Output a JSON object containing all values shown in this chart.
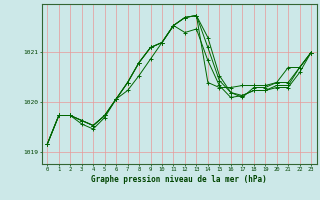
{
  "xlabel": "Graphe pression niveau de la mer (hPa)",
  "x_ticks": [
    0,
    1,
    2,
    3,
    4,
    5,
    6,
    7,
    8,
    9,
    10,
    11,
    12,
    13,
    14,
    15,
    16,
    17,
    18,
    19,
    20,
    21,
    22,
    23
  ],
  "ylim": [
    1018.75,
    1021.95
  ],
  "yticks": [
    1019,
    1020,
    1021
  ],
  "background_color": "#cce8e8",
  "grid_color": "#e89898",
  "line_color": "#006600",
  "series": [
    [
      1019.15,
      1019.72,
      1019.72,
      1019.62,
      1019.52,
      1019.72,
      1020.05,
      1020.38,
      1020.78,
      1021.08,
      1021.18,
      1021.52,
      1021.68,
      1021.72,
      1021.28,
      1020.52,
      1020.18,
      1020.12,
      1020.22,
      1020.22,
      1020.32,
      1020.32,
      1020.68,
      1020.98
    ],
    [
      1019.15,
      1019.72,
      1019.72,
      1019.62,
      1019.52,
      1019.72,
      1020.05,
      1020.22,
      1020.52,
      1020.85,
      1021.18,
      1021.52,
      1021.38,
      1021.45,
      1020.82,
      1020.32,
      1020.08,
      1020.12,
      1020.22,
      1020.22,
      1020.28,
      1020.28,
      1020.58,
      1020.98
    ],
    [
      1019.15,
      1019.72,
      1019.72,
      1019.62,
      1019.52,
      1019.72,
      1020.05,
      1020.38,
      1020.78,
      1021.08,
      1021.18,
      1021.52,
      1021.68,
      1021.72,
      1020.38,
      1020.28,
      1020.28,
      1020.32,
      1020.32,
      1020.32,
      1020.38,
      1020.38,
      1020.68,
      1020.98
    ],
    [
      1019.15,
      1019.72,
      1019.72,
      1019.55,
      1019.45,
      1019.68,
      1020.05,
      1020.38,
      1020.78,
      1021.08,
      1021.18,
      1021.52,
      1021.68,
      1021.72,
      1021.08,
      1020.42,
      1020.18,
      1020.08,
      1020.28,
      1020.28,
      1020.38,
      1020.68,
      1020.68,
      1020.98
    ]
  ]
}
